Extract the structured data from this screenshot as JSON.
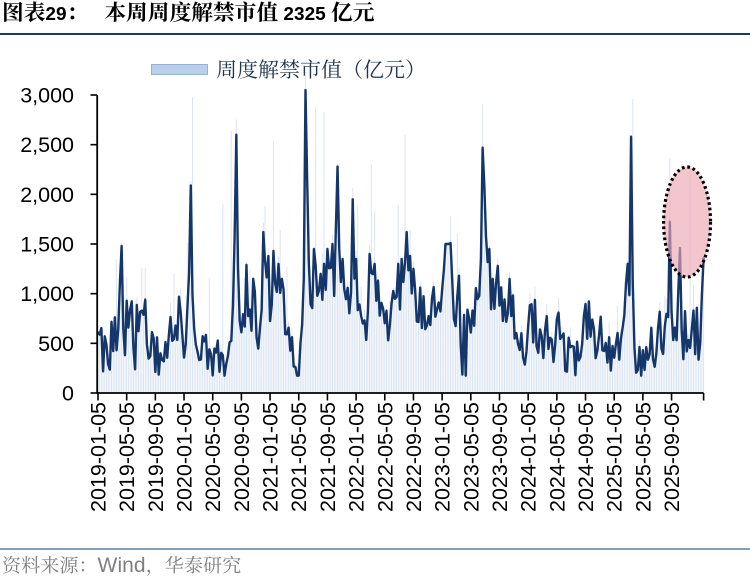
{
  "title": {
    "figure_label": "图表29：",
    "text": "本周周度解禁市值 2325 亿元"
  },
  "legend": {
    "label": "周度解禁市值（亿元）"
  },
  "footer": {
    "source": "资料来源：Wind，华泰研究"
  },
  "colors": {
    "line": "#14366b",
    "bar": "#dce6f2",
    "legend_swatch": "#b8d0ea",
    "legend_swatch_border": "#8fb4da",
    "title_rule": "#1f3864",
    "footer_rule": "#7d9dbe",
    "footer_text": "#7f7f7f",
    "axis": "#000000",
    "highlight_fill": "rgba(236,168,180,0.65)",
    "highlight_border": "#000000"
  },
  "chart_data": {
    "type": "bar+line",
    "title": "本周周度解禁市值 2325 亿元",
    "series_name": "周度解禁市值（亿元）",
    "unit": "亿元",
    "frequency": "weekly",
    "start_date": "2019-01-05",
    "this_week_value": 2325,
    "ylim": [
      0,
      3000
    ],
    "y_tick_labels": [
      "0",
      "500",
      "1,000",
      "1,500",
      "2,000",
      "2,500",
      "3,000"
    ],
    "y_ticks": [
      0,
      500,
      1000,
      1500,
      2000,
      2500,
      3000
    ],
    "x_tick_labels": [
      "2019-01-05",
      "2019-05-05",
      "2019-09-05",
      "2020-01-05",
      "2020-05-05",
      "2020-09-05",
      "2021-01-05",
      "2021-05-05",
      "2021-09-05",
      "2022-01-05",
      "2022-05-05",
      "2022-09-05",
      "2023-01-05",
      "2023-05-05",
      "2023-09-05",
      "2024-01-05",
      "2024-05-05",
      "2024-09-05",
      "2025-01-05",
      "2025-05-05",
      "2025-09-05"
    ],
    "x_tick_every_weeks": 17,
    "bars": [
      619,
      588,
      663,
      222,
      597,
      489,
      294,
      272,
      722,
      425,
      772,
      1350,
      760,
      1124,
      1524,
      649,
      402,
      1157,
      713,
      857,
      935,
      462,
      315,
      960,
      624,
      833,
      1260,
      849,
      1264,
      502,
      347,
      428,
      622,
      550,
      313,
      576,
      186,
      425,
      339,
      326,
      524,
      360,
      679,
      910,
      530,
      1200,
      694,
      561,
      986,
      1047,
      584,
      397,
      497,
      1510,
      1281,
      2134,
      2980,
      663,
      491,
      429,
      347,
      450,
      575,
      531,
      588,
      245,
      1160,
      453,
      211,
      449,
      450,
      543,
      235,
      483,
      1900,
      193,
      298,
      383,
      515,
      2640,
      879,
      1598,
      2756,
      1313,
      793,
      613,
      798,
      1160,
      1307,
      863,
      1243,
      688,
      1151,
      1043,
      559,
      470,
      657,
      857,
      1717,
      1880,
      1234,
      1463,
      840,
      906,
      2530,
      1170,
      1047,
      1378,
      1640,
      1156,
      1065,
      606,
      1270,
      723,
      427,
      652,
      279,
      297,
      262,
      180,
      525,
      769,
      1166,
      3233,
      2181,
      1339,
      896,
      863,
      1466,
      2880,
      1057,
      1091,
      1212,
      1406,
      2830,
      1060,
      1454,
      1287,
      1293,
      1590,
      1046,
      1678,
      2305,
      1860,
      1184,
      1354,
      1060,
      1037,
      1122,
      912,
      1019,
      2067,
      1158,
      1431,
      1890,
      941,
      1064,
      702,
      842,
      539,
      980,
      1484,
      2300,
      1232,
      1830,
      934,
      1200,
      797,
      931,
      854,
      792,
      850,
      604,
      927,
      974,
      1056,
      1061,
      996,
      1890,
      866,
      1352,
      1130,
      2600,
      1628,
      1243,
      1640,
      1008,
      1325,
      1050,
      777,
      735,
      1125,
      655,
      978,
      654,
      686,
      788,
      698,
      966,
      1130,
      773,
      864,
      916,
      824,
      1103,
      1306,
      1502,
      1504,
      1535,
      1780,
      1141,
      747,
      694,
      1600,
      1252,
      505,
      187,
      808,
      192,
      843,
      756,
      612,
      853,
      732,
      1066,
      1011,
      1164,
      1384,
      2910,
      2225,
      1596,
      1340,
      1488,
      1010,
      1164,
      854,
      1132,
      1357,
      883,
      1065,
      730,
      970,
      732,
      841,
      1219,
      784,
      1008,
      590,
      605,
      541,
      475,
      683,
      357,
      290,
      497,
      716,
      1010,
      914,
      513,
      1071,
      475,
      411,
      654,
      678,
      396,
      635,
      901,
      500,
      558,
      613,
      319,
      486,
      809,
      957,
      556,
      670,
      607,
      225,
      227,
      582,
      659,
      486,
      470,
      183,
      525,
      374,
      366,
      493,
      828,
      921,
      551,
      930,
      672,
      754,
      664,
      359,
      437,
      588,
      775,
      490,
      502,
      526,
      364,
      708,
      237,
      483,
      363,
      555,
      877,
      345,
      645,
      676,
      841,
      1151,
      1332,
      1010,
      2602,
      2960,
      459,
      226,
      249,
      534,
      229,
      437,
      236,
      510,
      343,
      551,
      663,
      343,
      266,
      431,
      675,
      916,
      457,
      440,
      977,
      950,
      821,
      2360,
      939,
      622,
      675,
      537,
      1039,
      1464,
      637,
      368,
      836,
      614,
      594,
      2325,
      652,
      1089,
      459,
      877,
      372,
      518,
      1109,
      1370
    ],
    "line": [
      609,
      588,
      654,
      218,
      570,
      487,
      291,
      235,
      717,
      422,
      762,
      430,
      642,
      1116,
      1480,
      646,
      381,
      929,
      659,
      834,
      923,
      455,
      239,
      886,
      622,
      818,
      829,
      787,
      940,
      490,
      346,
      371,
      613,
      550,
      212,
      561,
      185,
      400,
      333,
      319,
      512,
      354,
      583,
      766,
      525,
      542,
      679,
      534,
      969,
      816,
      584,
      357,
      488,
      863,
      1208,
      2090,
      990,
      650,
      487,
      418,
      332,
      337,
      572,
      519,
      585,
      243,
      440,
      390,
      177,
      447,
      407,
      528,
      213,
      404,
      381,
      175,
      291,
      372,
      510,
      524,
      878,
      1580,
      2600,
      1262,
      724,
      611,
      793,
      668,
      1290,
      774,
      841,
      627,
      1150,
      1019,
      559,
      447,
      652,
      835,
      1620,
      1334,
      1164,
      1380,
      724,
      889,
      1430,
      1104,
      1018,
      1300,
      1008,
      1150,
      1042,
      592,
      591,
      658,
      426,
      562,
      266,
      263,
      175,
      175,
      498,
      687,
      1151,
      3050,
      2138,
      1306,
      893,
      855,
      1450,
      1289,
      979,
      1029,
      1200,
      938,
      1300,
      1039,
      1450,
      1256,
      1259,
      1500,
      977,
      1649,
      2280,
      1454,
      1117,
      1350,
      1041,
      944,
      1059,
      803,
      1013,
      1950,
      1151,
      1350,
      834,
      891,
      774,
      700,
      731,
      534,
      822,
      1400,
      1208,
      1197,
      1300,
      928,
      1132,
      778,
      907,
      850,
      702,
      828,
      530,
      681,
      897,
      1027,
      948,
      967,
      1300,
      841,
      1350,
      1117,
      1315,
      1620,
      1235,
      1380,
      1002,
      1250,
      1038,
      719,
      715,
      1061,
      654,
      975,
      643,
      680,
      774,
      684,
      953,
      1066,
      768,
      844,
      911,
      821,
      1041,
      1232,
      1500,
      1500,
      1500,
      1510,
      1129,
      744,
      674,
      975,
      1181,
      491,
      186,
      786,
      175,
      839,
      749,
      609,
      830,
      677,
      1056,
      945,
      978,
      1348,
      2470,
      2099,
      1579,
      1318,
      1450,
      843,
      1150,
      847,
      1113,
      1280,
      879,
      1064,
      725,
      942,
      717,
      808,
      1150,
      774,
      982,
      548,
      604,
      493,
      433,
      602,
      355,
      286,
      418,
      673,
      885,
      893,
      509,
      937,
      470,
      405,
      640,
      573,
      352,
      631,
      774,
      443,
      556,
      539,
      313,
      483,
      744,
      810,
      544,
      570,
      599,
      222,
      215,
      557,
      461,
      474,
      466,
      180,
      517,
      328,
      363,
      493,
      768,
      896,
      546,
      921,
      567,
      739,
      645,
      350,
      426,
      575,
      768,
      430,
      423,
      504,
      307,
      562,
      226,
      474,
      355,
      489,
      605,
      336,
      547,
      658,
      784,
      1100,
      1300,
      985,
      2580,
      1110,
      456,
      204,
      230,
      463,
      175,
      431,
      232,
      461,
      335,
      389,
      658,
      342,
      264,
      402,
      656,
      819,
      447,
      393,
      672,
      797,
      765,
      1725,
      823,
      533,
      659,
      531,
      1026,
      1460,
      636,
      340,
      824,
      418,
      533,
      454,
      640,
      830,
      391,
      858,
      335,
      509,
      995,
      1360
    ],
    "highlight": {
      "label": "upcoming-unlock-peak",
      "center_index": 349.2,
      "center_value": 1721,
      "radius_weeks": 13.9,
      "radius_value": 554
    }
  }
}
